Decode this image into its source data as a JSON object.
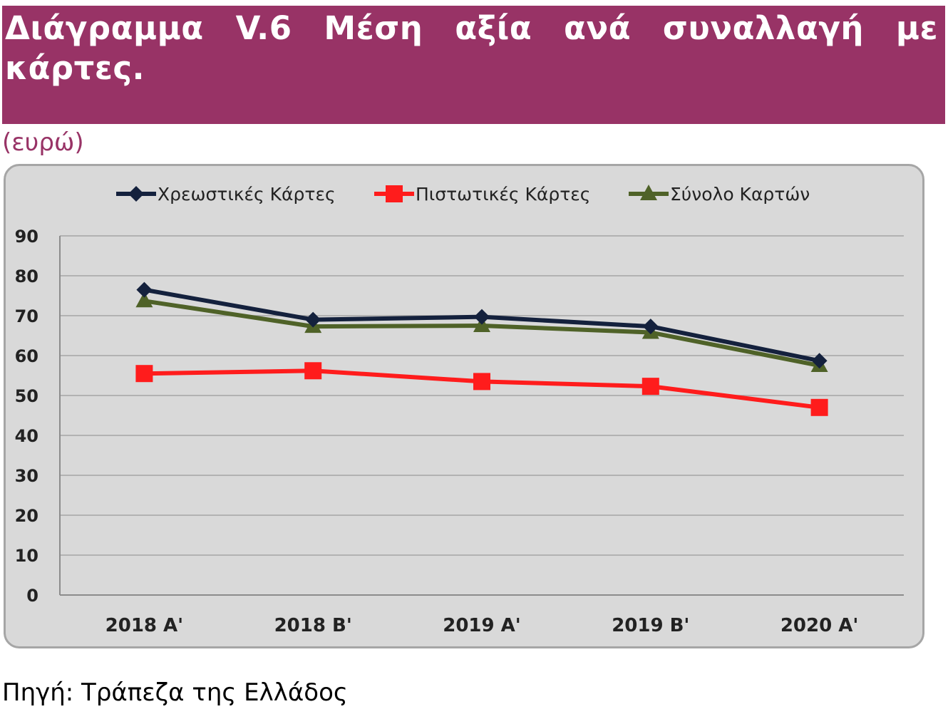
{
  "header": {
    "title": "Διάγραμμα V.6 Μέση αξία ανά συναλλαγή με κάρτες.",
    "unit": "(ευρώ)"
  },
  "footer": {
    "source": "Πηγή: Τράπεζα της Ελλάδος"
  },
  "colors": {
    "title_bg": "#983366",
    "plot_bg": "#d9d9d9"
  },
  "chart_data": {
    "type": "line",
    "title": "",
    "xlabel": "",
    "ylabel": "",
    "categories": [
      "2018 A'",
      "2018 B'",
      "2019 A'",
      "2019 B'",
      "2020 A'"
    ],
    "ylim": [
      0,
      90
    ],
    "yticks": [
      0,
      10,
      20,
      30,
      40,
      50,
      60,
      70,
      80,
      90
    ],
    "grid": true,
    "legend": "top",
    "series": [
      {
        "name": "Χρεωστικές Κάρτες",
        "values": [
          76.5,
          69,
          69.7,
          67.3,
          58.7
        ],
        "color": "#14213d",
        "marker": "diamond"
      },
      {
        "name": "Πιστωτικές Κάρτες",
        "values": [
          55.5,
          56.2,
          53.5,
          52.3,
          47
        ],
        "color": "#ff1c1c",
        "marker": "square"
      },
      {
        "name": "Σύνολο Καρτών",
        "values": [
          73.7,
          67.3,
          67.5,
          65.8,
          57.5
        ],
        "color": "#4f6228",
        "marker": "triangle"
      }
    ]
  }
}
